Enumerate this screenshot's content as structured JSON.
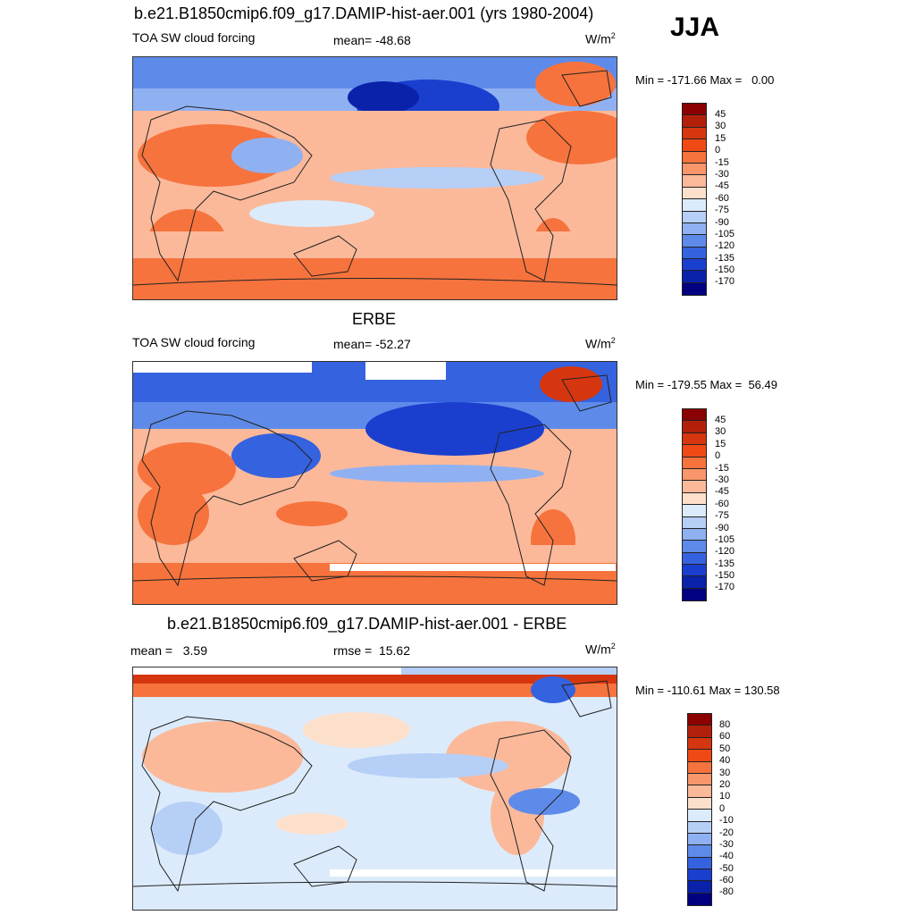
{
  "season": "JJA",
  "panels": [
    {
      "title": "b.e21.B1850cmip6.f09_g17.DAMIP-hist-aer.001 (yrs 1980-2004)",
      "left_label": "TOA SW cloud forcing",
      "center_label": "mean= -48.68",
      "units": "W/m",
      "units_sup": "2",
      "minmax": "Min = -171.66 Max =   0.00",
      "colorbar_labels": [
        "45",
        "30",
        "15",
        "0",
        "-15",
        "-30",
        "-45",
        "-60",
        "-75",
        "-90",
        "-105",
        "-120",
        "-135",
        "-150",
        "-170"
      ]
    },
    {
      "title": "ERBE",
      "left_label": "TOA SW cloud forcing",
      "center_label": "mean= -52.27",
      "units": "W/m",
      "units_sup": "2",
      "minmax": "Min = -179.55 Max =  56.49",
      "colorbar_labels": [
        "45",
        "30",
        "15",
        "0",
        "-15",
        "-30",
        "-45",
        "-60",
        "-75",
        "-90",
        "-105",
        "-120",
        "-135",
        "-150",
        "-170"
      ]
    },
    {
      "title": "b.e21.B1850cmip6.f09_g17.DAMIP-hist-aer.001 - ERBE",
      "left_label": "mean =   3.59",
      "center_label": "rmse =  15.62",
      "units": "W/m",
      "units_sup": "2",
      "minmax": "Min = -110.61 Max = 130.58",
      "colorbar_labels": [
        "80",
        "60",
        "50",
        "40",
        "30",
        "20",
        "10",
        "0",
        "-10",
        "-20",
        "-30",
        "-40",
        "-50",
        "-60",
        "-80"
      ]
    }
  ],
  "colors": {
    "colorbar_16": [
      "#8b0000",
      "#b2200b",
      "#d6360f",
      "#ef4a15",
      "#f6733d",
      "#f9966b",
      "#fbb99a",
      "#fde0cc",
      "#dcebfb",
      "#b6cff7",
      "#8fb1f2",
      "#5e8be9",
      "#3562de",
      "#1a3fcf",
      "#0a22aa",
      "#000080"
    ],
    "land_outline": "#222222"
  }
}
